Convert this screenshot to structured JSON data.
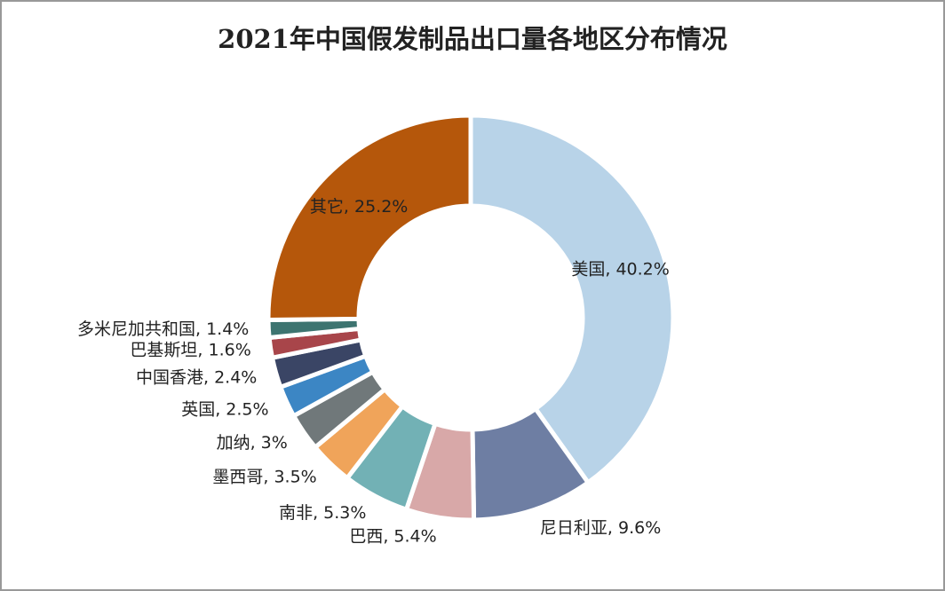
{
  "chart_data": {
    "type": "donut",
    "title": "2021年中国假发制品出口量各地区分布情况",
    "values": [
      40.2,
      9.6,
      5.4,
      5.3,
      3.5,
      3,
      2.5,
      2.4,
      1.6,
      1.4,
      25.2
    ],
    "value_labels": [
      "美国, 40.2%",
      "尼日利亚, 9.6%",
      "巴西, 5.4%",
      "南非, 5.3%",
      "墨西哥, 3.5%",
      "加纳, 3%",
      "英国, 2.5%",
      "中国香港, 2.4%",
      "巴基斯坦, 1.6%",
      "多米尼加共和国, 1.4%",
      "其它, 25.2%"
    ],
    "colors": [
      "#b8d3e8",
      "#6e7ea3",
      "#d8a8a8",
      "#72b1b5",
      "#f0a45a",
      "#70787a",
      "#3c86c4",
      "#3a4565",
      "#a8454a",
      "#3d7470",
      "#b5570b"
    ]
  }
}
